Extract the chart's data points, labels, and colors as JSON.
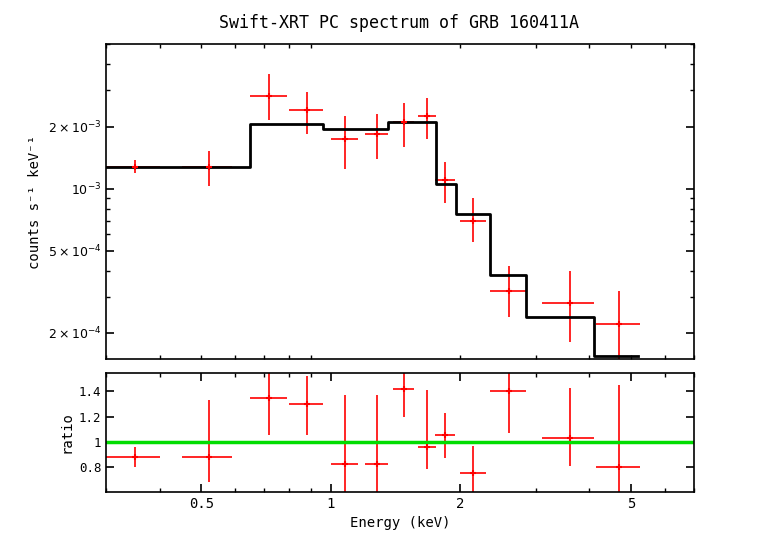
{
  "title": "Swift-XRT PC spectrum of GRB 160411A",
  "xlabel": "Energy (keV)",
  "ylabel1": "counts s⁻¹ keV⁻¹",
  "ylabel2": "ratio",
  "background_color": "#ffffff",
  "spectrum_data": {
    "x": [
      0.35,
      0.52,
      0.72,
      0.88,
      1.08,
      1.28,
      1.48,
      1.68,
      1.85,
      2.15,
      2.6,
      3.6,
      4.7
    ],
    "xerr_lo": [
      0.05,
      0.07,
      0.07,
      0.08,
      0.08,
      0.08,
      0.08,
      0.08,
      0.1,
      0.15,
      0.25,
      0.5,
      0.55
    ],
    "xerr_hi": [
      0.05,
      0.07,
      0.07,
      0.08,
      0.08,
      0.08,
      0.08,
      0.08,
      0.1,
      0.15,
      0.25,
      0.5,
      0.55
    ],
    "y": [
      0.00128,
      0.00128,
      0.0028,
      0.0024,
      0.00175,
      0.00185,
      0.0021,
      0.00225,
      0.0011,
      0.0007,
      0.00032,
      0.00028,
      0.00022
    ],
    "yerr_lo": [
      9e-05,
      0.00025,
      0.00065,
      0.00055,
      0.0005,
      0.00045,
      0.0005,
      0.0005,
      0.00025,
      0.00015,
      8e-05,
      0.0001,
      8e-05
    ],
    "yerr_hi": [
      9e-05,
      0.00025,
      0.0008,
      0.00055,
      0.0005,
      0.00045,
      0.0005,
      0.0005,
      0.00025,
      0.0002,
      0.0001,
      0.00012,
      0.0001
    ]
  },
  "model_steps": {
    "x_edges": [
      0.3,
      0.6,
      0.65,
      0.8,
      0.96,
      1.16,
      1.36,
      1.56,
      1.76,
      1.96,
      2.35,
      2.85,
      4.1,
      5.2
    ],
    "y_vals": [
      0.00128,
      0.00128,
      0.00205,
      0.00205,
      0.00195,
      0.00195,
      0.0021,
      0.0021,
      0.00105,
      0.00075,
      0.00038,
      0.00024,
      0.000155
    ]
  },
  "ratio_data": {
    "x": [
      0.35,
      0.52,
      0.72,
      0.88,
      1.08,
      1.28,
      1.48,
      1.68,
      1.85,
      2.15,
      2.6,
      3.6,
      4.7
    ],
    "xerr_lo": [
      0.05,
      0.07,
      0.07,
      0.08,
      0.08,
      0.08,
      0.08,
      0.08,
      0.1,
      0.15,
      0.25,
      0.5,
      0.55
    ],
    "xerr_hi": [
      0.05,
      0.07,
      0.07,
      0.08,
      0.08,
      0.08,
      0.08,
      0.08,
      0.1,
      0.15,
      0.25,
      0.5,
      0.55
    ],
    "y": [
      0.88,
      0.88,
      1.35,
      1.3,
      0.82,
      0.82,
      1.42,
      0.96,
      1.05,
      0.75,
      1.4,
      1.03,
      0.8
    ],
    "yerr_lo": [
      0.08,
      0.2,
      0.3,
      0.25,
      0.52,
      0.22,
      0.22,
      0.18,
      0.18,
      0.18,
      0.33,
      0.22,
      0.35
    ],
    "yerr_hi": [
      0.08,
      0.45,
      0.3,
      0.22,
      0.55,
      0.55,
      0.22,
      0.45,
      0.18,
      0.22,
      0.32,
      0.4,
      0.65
    ]
  },
  "data_color": "#ff0000",
  "model_color": "#000000",
  "ratio_line_color": "#00dd00",
  "xlim": [
    0.3,
    7.0
  ],
  "ylim_spec": [
    0.00015,
    0.005
  ],
  "ylim_ratio": [
    0.6,
    1.55
  ]
}
